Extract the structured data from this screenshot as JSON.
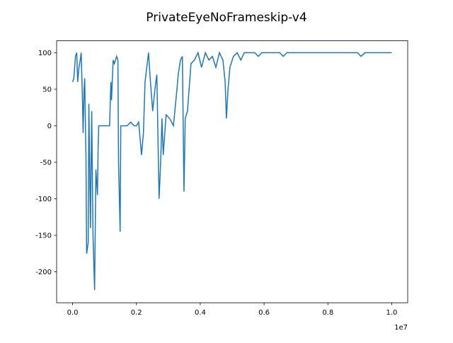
{
  "chart_data": {
    "type": "line",
    "title": "PrivateEyeNoFrameskip-v4",
    "x": [
      0,
      40000,
      90000,
      130000,
      160000,
      200000,
      240000,
      270000,
      310000,
      330000,
      360000,
      380000,
      420000,
      440000,
      490000,
      510000,
      560000,
      600000,
      640000,
      690000,
      730000,
      780000,
      800000,
      820000,
      1160000,
      1200000,
      1220000,
      1270000,
      1310000,
      1380000,
      1420000,
      1440000,
      1490000,
      1510000,
      1710000,
      1820000,
      1930000,
      2000000,
      2070000,
      2160000,
      2220000,
      2270000,
      2380000,
      2440000,
      2510000,
      2580000,
      2640000,
      2710000,
      2760000,
      2800000,
      2840000,
      2930000,
      3040000,
      3160000,
      3270000,
      3310000,
      3380000,
      3440000,
      3490000,
      3530000,
      3600000,
      3710000,
      3820000,
      3930000,
      4040000,
      4160000,
      4270000,
      4380000,
      4490000,
      4600000,
      4710000,
      4780000,
      4820000,
      4870000,
      4930000,
      5040000,
      5160000,
      5270000,
      5380000,
      5710000,
      5820000,
      5930000,
      6490000,
      6600000,
      6710000,
      8930000,
      9040000,
      9160000,
      9710000,
      10000000
    ],
    "series": [
      {
        "color": "#1f77b4",
        "values": [
          60,
          65,
          95,
          100,
          60,
          80,
          90,
          100,
          35,
          -10,
          50,
          65,
          -45,
          -175,
          -160,
          30,
          -140,
          20,
          -150,
          -225,
          -60,
          -95,
          -30,
          0,
          0,
          60,
          35,
          90,
          85,
          95,
          90,
          -50,
          -145,
          0,
          0,
          5,
          0,
          0,
          5,
          -40,
          -10,
          60,
          100,
          60,
          20,
          50,
          70,
          -100,
          -50,
          10,
          -40,
          15,
          10,
          0,
          50,
          70,
          90,
          95,
          -90,
          10,
          20,
          85,
          90,
          100,
          80,
          100,
          90,
          95,
          80,
          100,
          90,
          60,
          10,
          50,
          80,
          95,
          100,
          90,
          100,
          100,
          95,
          100,
          100,
          95,
          100,
          100,
          95,
          100,
          100,
          100
        ]
      }
    ],
    "xlim": [
      -500000,
      10500000
    ],
    "xticks": [
      {
        "value": 0,
        "label": "0.0"
      },
      {
        "value": 2000000,
        "label": "0.2"
      },
      {
        "value": 4000000,
        "label": "0.4"
      },
      {
        "value": 6000000,
        "label": "0.6"
      },
      {
        "value": 8000000,
        "label": "0.8"
      },
      {
        "value": 10000000,
        "label": "1.0"
      }
    ],
    "x_offset_label": "1e7",
    "ylim": [
      -242.3,
      116.3
    ],
    "yticks": [
      -200,
      -150,
      -100,
      -50,
      0,
      50,
      100
    ]
  }
}
